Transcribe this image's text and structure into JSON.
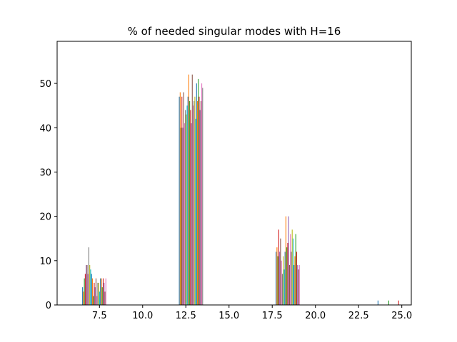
{
  "chart_data": {
    "type": "bar",
    "title": "% of needed singular modes with H=16",
    "xlabel": "",
    "ylabel": "",
    "xlim": [
      5.05,
      25.55
    ],
    "ylim": [
      0,
      59.5
    ],
    "xticks": [
      7.5,
      10.0,
      12.5,
      15.0,
      17.5,
      20.0,
      22.5,
      25.0
    ],
    "xtick_labels": [
      "7.5",
      "10.0",
      "12.5",
      "15.0",
      "17.5",
      "20.0",
      "22.5",
      "25.0"
    ],
    "yticks": [
      0,
      10,
      20,
      30,
      40,
      50
    ],
    "ytick_labels": [
      "0",
      "10",
      "20",
      "30",
      "40",
      "50"
    ],
    "grid": false,
    "legend": "none",
    "bin_edges": [
      6.5,
      7.9,
      12.1,
      13.5,
      17.7,
      19.1,
      23.6,
      25.0
    ],
    "bar_groups": [
      {
        "bin_start": 6.5,
        "bin_end": 7.9,
        "values": [
          4,
          3,
          6,
          7,
          9,
          9,
          7,
          13,
          9,
          8,
          7,
          6,
          2,
          5,
          4,
          6,
          2,
          5,
          5,
          3,
          6,
          6,
          4,
          6,
          5,
          3,
          6
        ]
      },
      {
        "bin_start": 12.1,
        "bin_end": 13.5,
        "values": [
          47,
          48,
          40,
          47,
          40,
          48,
          41,
          44,
          43,
          45,
          47,
          52,
          46,
          44,
          41,
          52,
          45,
          46,
          47,
          42,
          50,
          46,
          51,
          47,
          44,
          46,
          50,
          49
        ]
      },
      {
        "bin_start": 17.7,
        "bin_end": 19.1,
        "values": [
          12,
          13,
          11,
          17,
          12,
          15,
          10,
          7,
          11,
          8,
          12,
          20,
          13,
          14,
          20,
          9,
          16,
          12,
          17,
          15,
          9,
          11,
          16,
          12,
          9,
          8,
          9
        ]
      },
      {
        "bin_start": 23.6,
        "bin_end": 25.0,
        "values": [
          1,
          0,
          0,
          0,
          0,
          0,
          0,
          0,
          0,
          0,
          0,
          0,
          1,
          0,
          0,
          0,
          0,
          0,
          0,
          0,
          0,
          0,
          0,
          1,
          0,
          0,
          0
        ]
      }
    ],
    "series_colors": [
      "#1f77b4",
      "#ff7f0e",
      "#2ca02c",
      "#d62728",
      "#9467bd",
      "#8c564b",
      "#e377c2",
      "#7f7f7f",
      "#bcbd22",
      "#17becf"
    ]
  }
}
